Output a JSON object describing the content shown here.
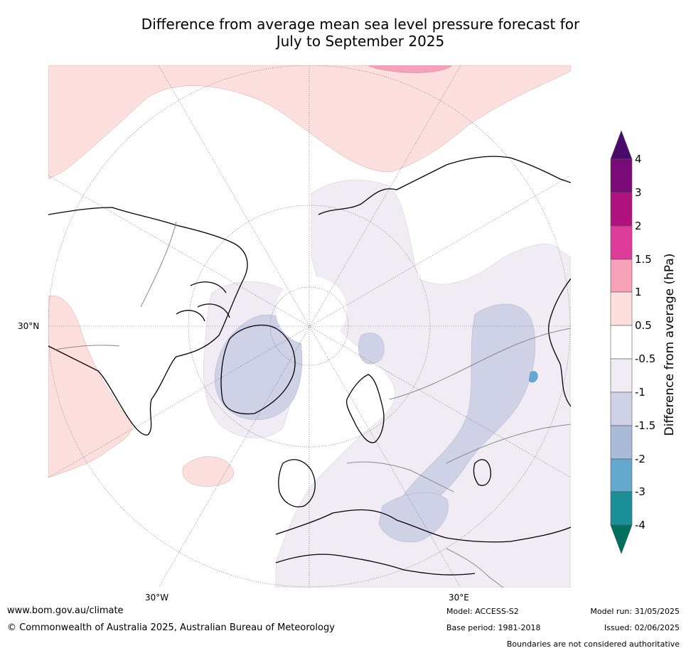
{
  "title_line1": "Difference from average mean sea level pressure forecast for",
  "title_line2": "July to September 2025",
  "map": {
    "projection": "polar stereographic (north)",
    "lat_labels": {
      "lat30n": "30°N"
    },
    "lon_labels": {
      "lon30w": "30°W",
      "lon30e": "30°E"
    }
  },
  "colorbar": {
    "title": "Difference from average (hPa)",
    "ticks": [
      "4",
      "3",
      "2",
      "1.5",
      "1",
      "0.5",
      "-0.5",
      "-1",
      "-1.5",
      "-2",
      "-3",
      "-4"
    ],
    "colors": {
      "above_4": "#4a0a6a",
      "3_to_4": "#7a0a78",
      "2_to_3": "#b0127e",
      "1.5_to_2": "#dd3b9a",
      "1_to_1.5": "#f7a1b8",
      "0.5_to_1": "#fde0de",
      "-0.5_to_0.5": "#ffffff",
      "-1_to_-0.5": "#f1ecf4",
      "-1.5_to_-1": "#cfd1e6",
      "-2_to_-1.5": "#a9bbd6",
      "-3_to_-2": "#66a9cf",
      "-4_to_-3": "#1c9099",
      "below_-4": "#01705f"
    }
  },
  "footer": {
    "url": "www.bom.gov.au/climate",
    "copyright": "© Commonwealth of Australia 2025, Australian Bureau of Meteorology",
    "model": "Model: ACCESS-S2",
    "base_period": "Base period: 1981-2018",
    "model_run": "Model run: 31/05/2025",
    "issued": "Issued: 02/06/2025",
    "boundaries_note": "Boundaries are not considered authoritative"
  }
}
